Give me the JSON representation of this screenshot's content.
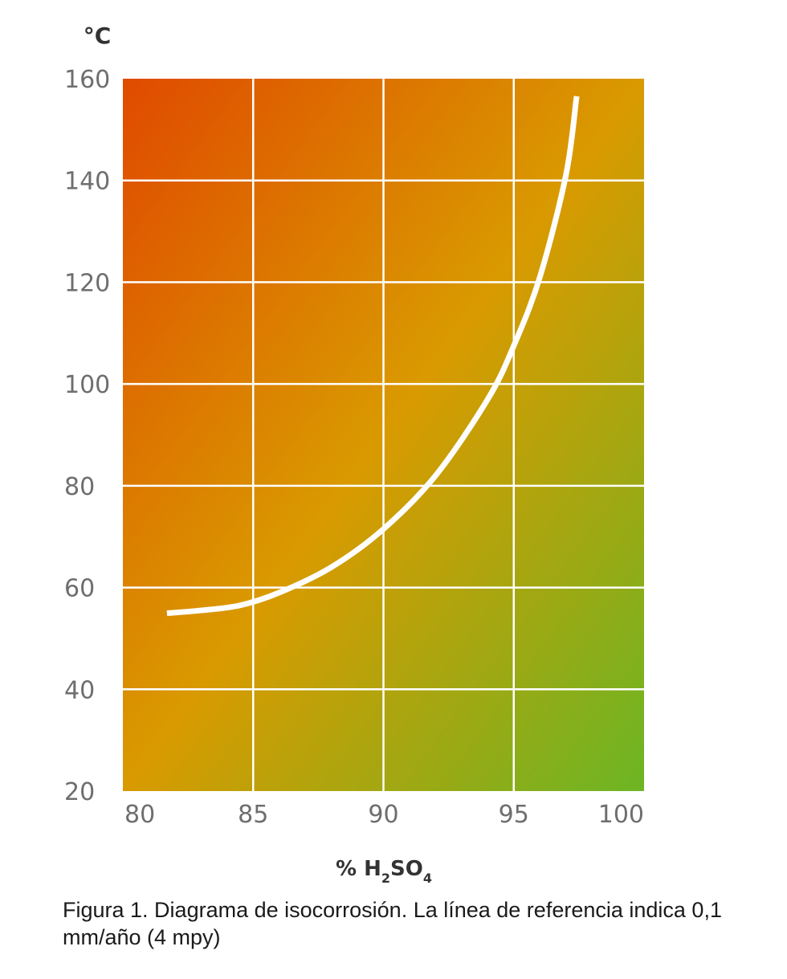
{
  "chart_data": {
    "type": "line",
    "ylabel": "°C",
    "xlabel": {
      "prefix": "% H",
      "sub1": "2",
      "mid": "SO",
      "sub2": "4"
    },
    "xlim": [
      80,
      100
    ],
    "ylim": [
      20,
      160
    ],
    "x_ticks": [
      80,
      85,
      90,
      95,
      100
    ],
    "y_ticks": [
      20,
      40,
      60,
      80,
      100,
      120,
      140,
      160
    ],
    "grid": true,
    "background_gradient": {
      "high_corrosion_color": "#e04a00",
      "mid_color": "#d99a00",
      "low_corrosion_color": "#6cb524"
    },
    "series": [
      {
        "color": "#ffffff",
        "x": [
          81.8,
          83.0,
          84.5,
          86.0,
          88.0,
          90.0,
          92.0,
          94.0,
          95.0,
          96.0,
          97.0,
          97.4
        ],
        "y": [
          55,
          55.5,
          56.5,
          59,
          64,
          71.5,
          82,
          97,
          107.5,
          121,
          141,
          156
        ]
      }
    ]
  },
  "caption": "Figura 1. Diagrama de isocorrosión. La línea de referencia indica 0,1 mm/año (4 mpy)"
}
